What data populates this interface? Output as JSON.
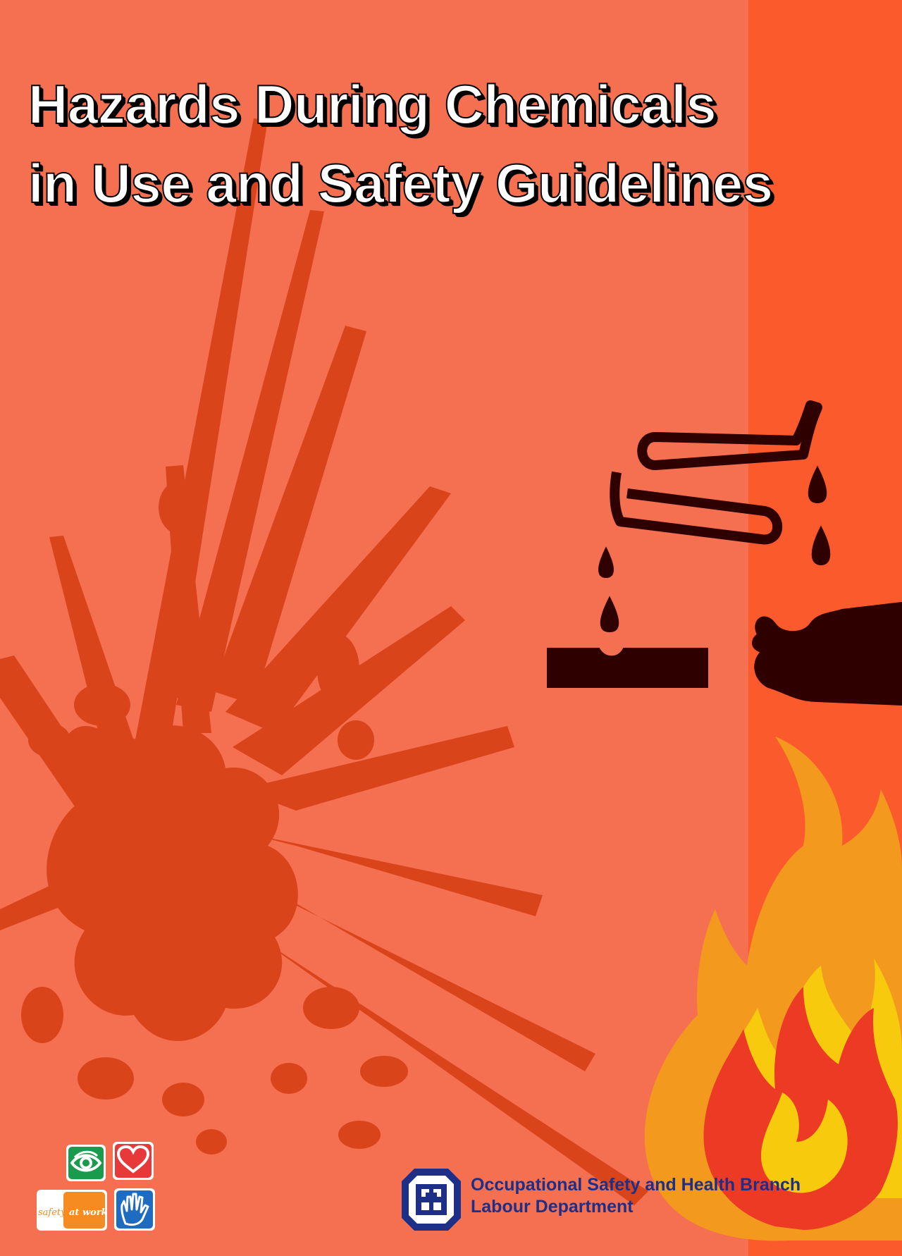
{
  "cover": {
    "title_line_1": "Hazards During Chemicals",
    "title_line_2": "in Use and Safety Guidelines",
    "colors": {
      "background": "#f56f51",
      "right_band": "#fb5a2c",
      "explosion_symbol": "#d9441a",
      "corrosive_symbol": "#2e0000",
      "flame_outer": "#f39a1e",
      "flame_inner": "#ec3a25",
      "flame_core": "#f7d20a",
      "department_text": "#1d2f86"
    },
    "icons": [
      "explosion-symbol",
      "corrosive-symbol",
      "flame-symbol",
      "eye-icon",
      "heart-icon",
      "hand-icon",
      "department-emblem"
    ]
  },
  "safety_at_work_logo": {
    "word_1": "safety",
    "word_2": "at work"
  },
  "department": {
    "branch": "Occupational Safety and Health Branch",
    "name": "Labour Department"
  }
}
